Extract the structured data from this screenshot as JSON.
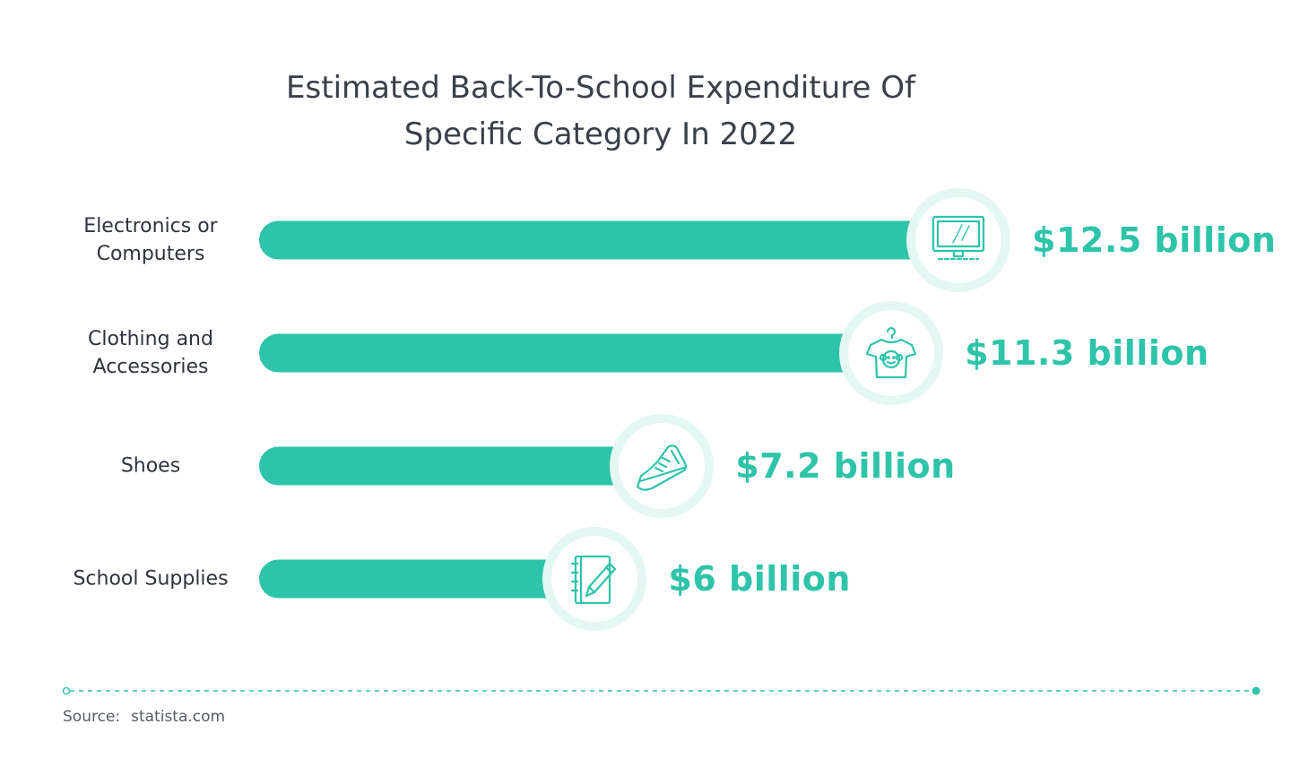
{
  "title_lines": [
    "Estimated Back-To-School Expenditure Of",
    "Specific Category In 2022"
  ],
  "chart_data": {
    "type": "bar",
    "orientation": "horizontal",
    "title": "Estimated Back-To-School Expenditure Of Specific Category In 2022",
    "unit": "billion USD",
    "categories": [
      "Electronics or Computers",
      "Clothing and Accessories",
      "Shoes",
      "School Supplies"
    ],
    "category_lines": [
      [
        "Electronics or",
        "Computers"
      ],
      [
        "Clothing and",
        "Accessories"
      ],
      [
        "Shoes"
      ],
      [
        "School Supplies"
      ]
    ],
    "values": [
      12.5,
      11.3,
      7.2,
      6
    ],
    "value_labels": [
      "$12.5 billion",
      "$11.3 billion",
      "$7.2 billion",
      "$6 billion"
    ],
    "icons": [
      "monitor-icon",
      "t-shirt-icon",
      "sneaker-icon",
      "notebook-pencil-icon"
    ],
    "grid": false,
    "legend": "none"
  },
  "source": {
    "label": "Source:",
    "value": "statista.com"
  },
  "colors": {
    "bar": "#2ec4aa",
    "value_text": "#2ec4aa",
    "icon_ring": "#e3f7f3",
    "icon_stroke": "#2ec4aa",
    "title_text": "#3a3f48",
    "footer_line": "#2ec4aa"
  }
}
